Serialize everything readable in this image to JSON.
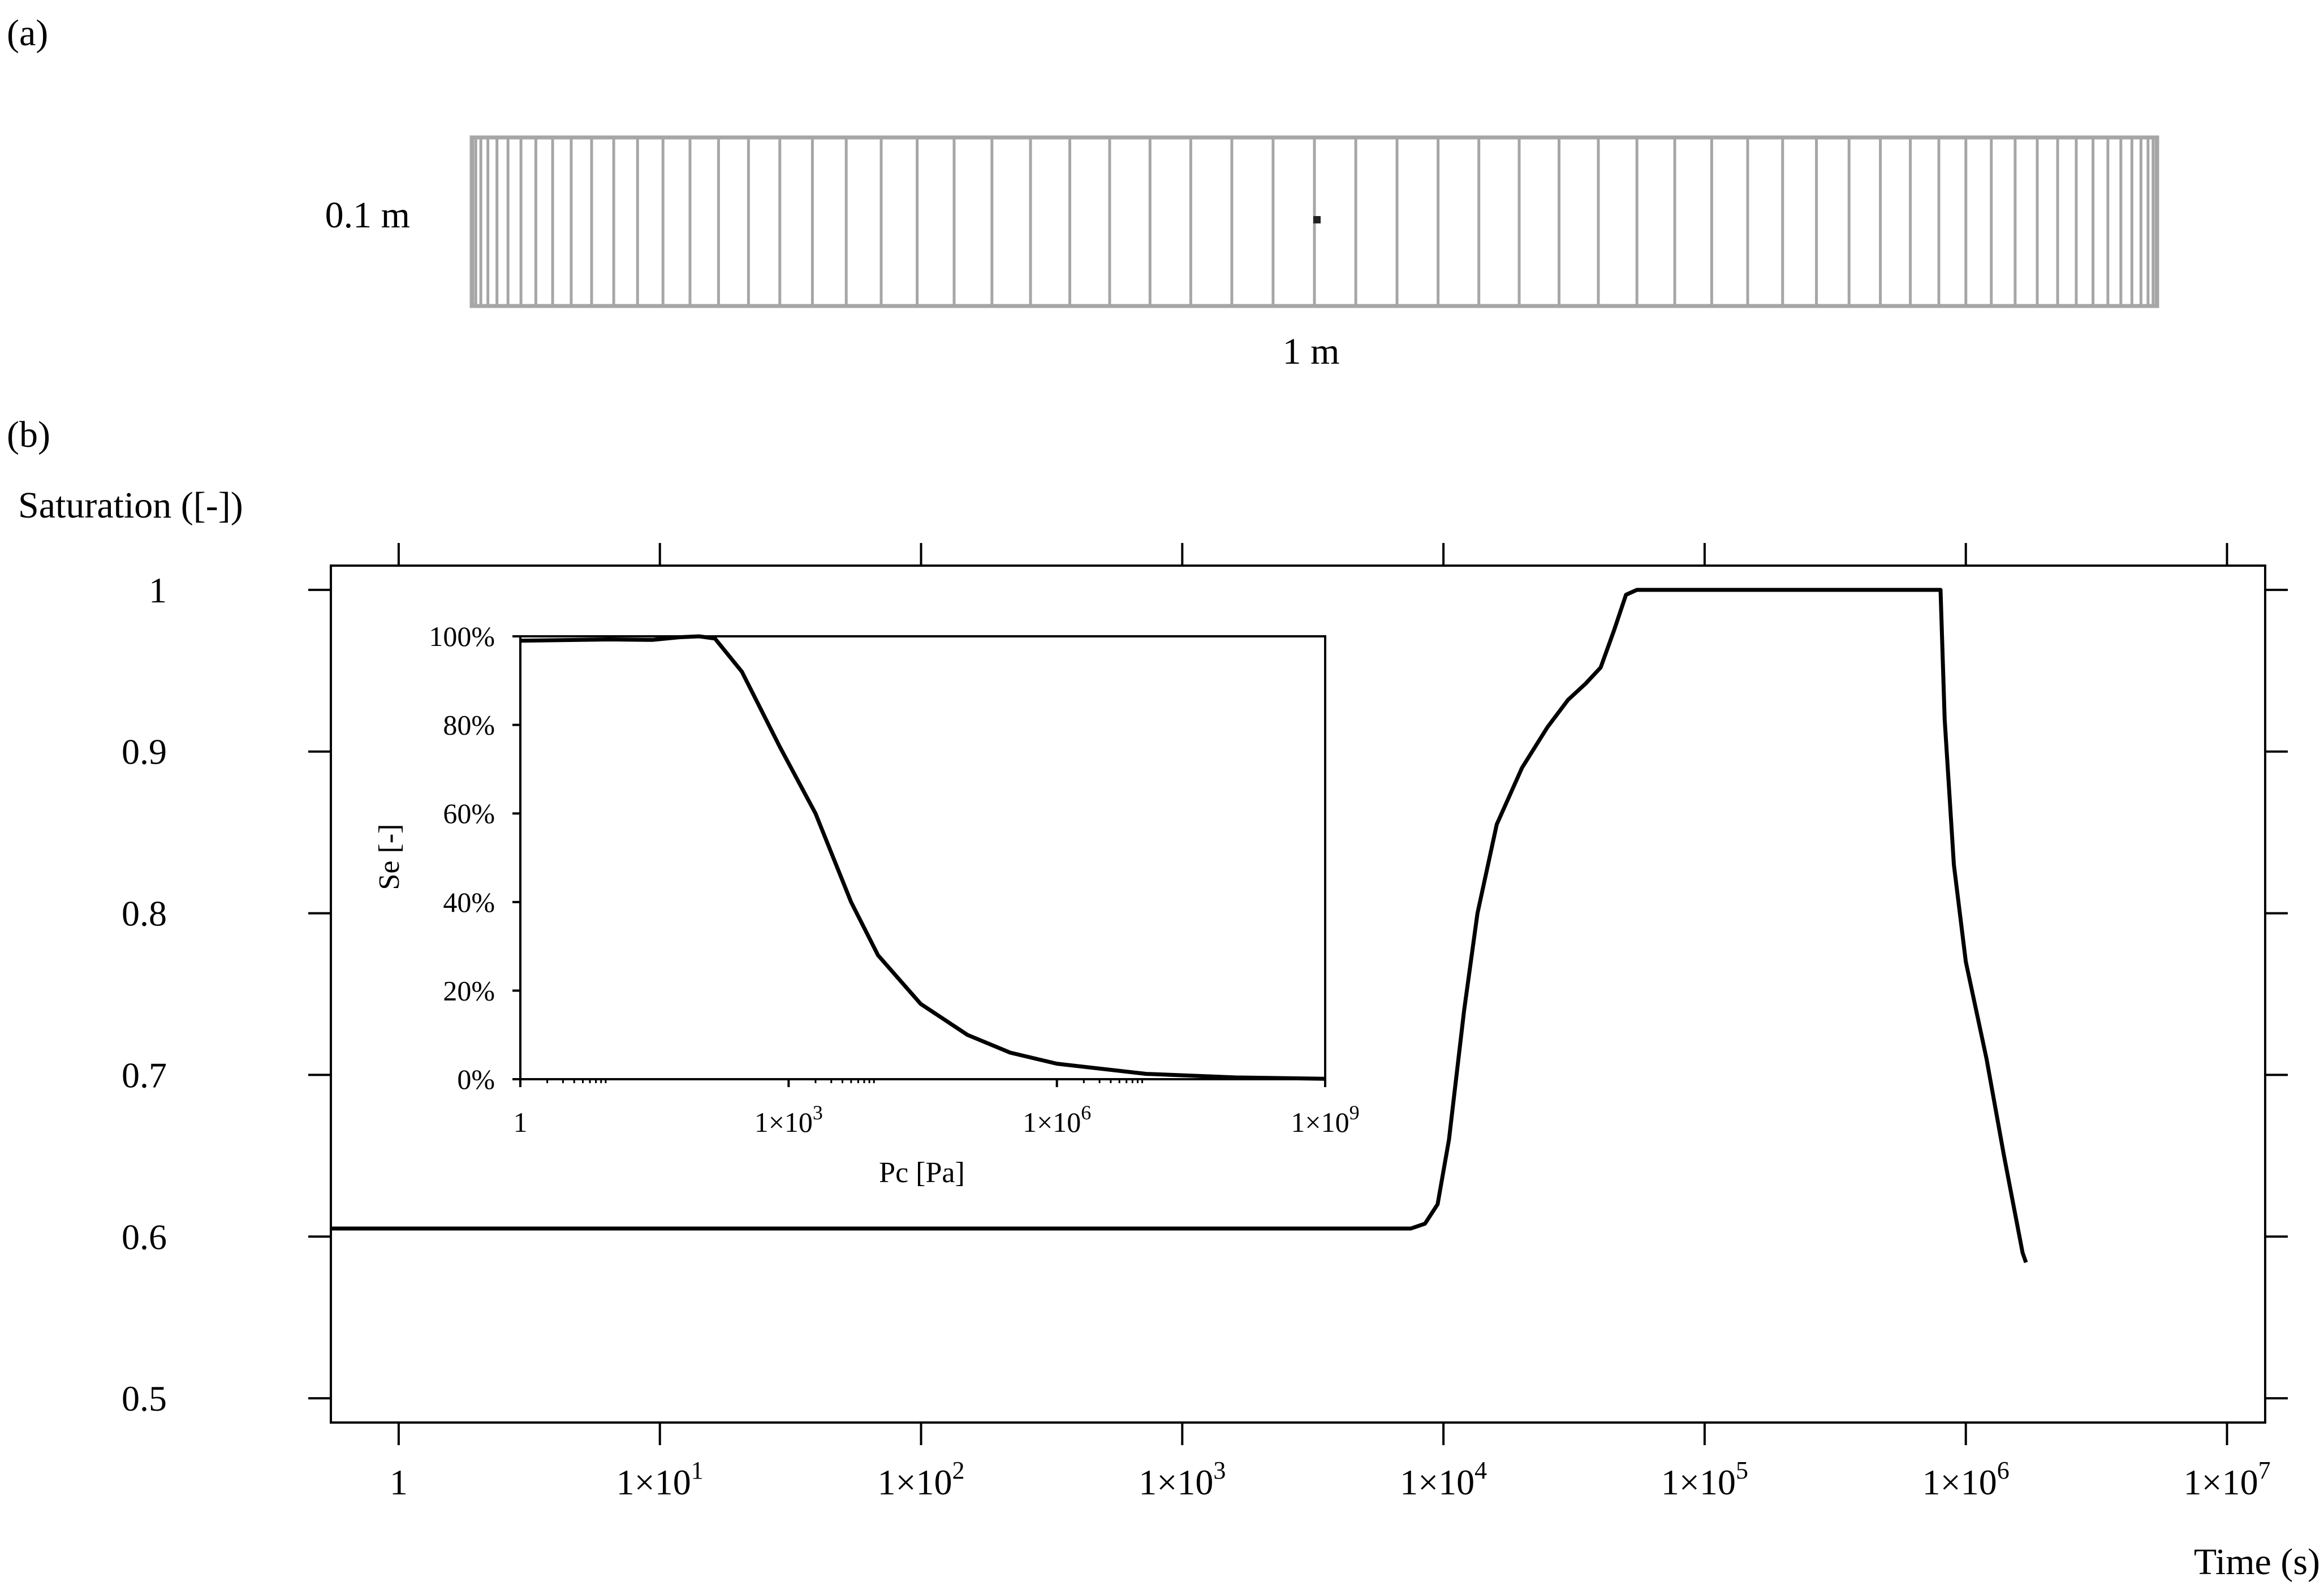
{
  "panel_a": {
    "label": "(a)",
    "height_label": "0.1 m",
    "width_label": "1 m"
  },
  "panel_b": {
    "label": "(b)"
  },
  "chart_data": [
    {
      "type": "line",
      "ylabel": "Saturation ([-])",
      "xlabel": "Time (s)",
      "x_scale": "log",
      "xlim": [
        0.55,
        14000000.0
      ],
      "ylim": [
        0.485,
        1.015
      ],
      "x_ticks": [
        1,
        10,
        100,
        1000,
        10000,
        100000,
        1000000,
        10000000
      ],
      "x_tick_labels": [
        {
          "base": "1",
          "exp": ""
        },
        {
          "base": "1×10",
          "exp": "1"
        },
        {
          "base": "1×10",
          "exp": "2"
        },
        {
          "base": "1×10",
          "exp": "3"
        },
        {
          "base": "1×10",
          "exp": "4"
        },
        {
          "base": "1×10",
          "exp": "5"
        },
        {
          "base": "1×10",
          "exp": "6"
        },
        {
          "base": "1×10",
          "exp": "7"
        }
      ],
      "y_ticks": [
        0.5,
        0.6,
        0.7,
        0.8,
        0.9,
        1.0
      ],
      "y_tick_labels": [
        "0.5",
        "0.6",
        "0.7",
        "0.8",
        "0.9",
        "1"
      ],
      "grid": false,
      "series": [
        {
          "color": "#000000",
          "points": [
            [
              0.55,
              0.605
            ],
            [
              1000,
              0.605
            ],
            [
              7500,
              0.605
            ],
            [
              8500,
              0.608
            ],
            [
              9500,
              0.62
            ],
            [
              10500,
              0.66
            ],
            [
              12000,
              0.74
            ],
            [
              13500,
              0.8
            ],
            [
              16000,
              0.855
            ],
            [
              20000,
              0.89
            ],
            [
              25000,
              0.915
            ],
            [
              30000,
              0.932
            ],
            [
              35000,
              0.942
            ],
            [
              40000,
              0.952
            ],
            [
              45000,
              0.975
            ],
            [
              50000,
              0.997
            ],
            [
              55000,
              1.0
            ],
            [
              200000,
              1.0
            ],
            [
              800000,
              1.0
            ],
            [
              830000,
              0.92
            ],
            [
              900000,
              0.83
            ],
            [
              1000000,
              0.77
            ],
            [
              1200000,
              0.71
            ],
            [
              1400000,
              0.65
            ],
            [
              1650000,
              0.59
            ],
            [
              1700000,
              0.584
            ]
          ]
        }
      ]
    },
    {
      "type": "line",
      "ylabel": "Se [-]",
      "xlabel": "Pc [Pa]",
      "x_scale": "log",
      "xlim": [
        1,
        1000000000.0
      ],
      "ylim": [
        0,
        1.0
      ],
      "x_ticks": [
        1,
        1000,
        1000000,
        1000000000
      ],
      "x_tick_labels": [
        {
          "base": "1",
          "exp": ""
        },
        {
          "base": "1×10",
          "exp": "3"
        },
        {
          "base": "1×10",
          "exp": "6"
        },
        {
          "base": "1×10",
          "exp": "9"
        }
      ],
      "y_ticks": [
        0,
        0.2,
        0.4,
        0.6,
        0.8,
        1.0
      ],
      "y_tick_labels": [
        "0%",
        "20%",
        "40%",
        "60%",
        "80%",
        "100%"
      ],
      "grid": false,
      "series": [
        {
          "color": "#000000",
          "points": [
            [
              1,
              0.99
            ],
            [
              10,
              0.993
            ],
            [
              30,
              0.992
            ],
            [
              60,
              0.998
            ],
            [
              100,
              1.0
            ],
            [
              150,
              0.995
            ],
            [
              300,
              0.92
            ],
            [
              800,
              0.75
            ],
            [
              2000,
              0.6
            ],
            [
              5000,
              0.4
            ],
            [
              10000,
              0.28
            ],
            [
              30000,
              0.17
            ],
            [
              100000,
              0.1
            ],
            [
              300000,
              0.06
            ],
            [
              1000000,
              0.035
            ],
            [
              10000000,
              0.012
            ],
            [
              100000000,
              0.004
            ],
            [
              1000000000,
              0.001
            ]
          ]
        }
      ]
    }
  ]
}
